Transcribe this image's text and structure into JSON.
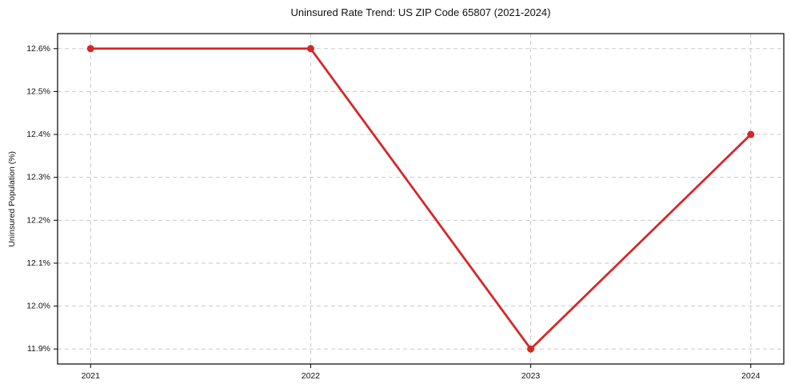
{
  "chart_data": {
    "type": "line",
    "title": "Uninsured Rate Trend: US ZIP Code 65807 (2021-2024)",
    "xlabel": "",
    "ylabel": "Uninsured Population (%)",
    "x": [
      2021,
      2022,
      2023,
      2024
    ],
    "series": [
      {
        "name": "Uninsured rate",
        "values": [
          12.6,
          12.6,
          11.9,
          12.4
        ],
        "color": "#d62728",
        "line_width": 2.8,
        "marker": "circle",
        "marker_radius": 4.5
      }
    ],
    "xtick_labels": [
      "2021",
      "2022",
      "2023",
      "2024"
    ],
    "yticks": [
      11.9,
      12.0,
      12.1,
      12.2,
      12.3,
      12.4,
      12.5,
      12.6
    ],
    "ytick_labels": [
      "11.9%",
      "12.0%",
      "12.1%",
      "12.2%",
      "12.3%",
      "12.4%",
      "12.5%",
      "12.6%"
    ],
    "xlim": [
      2020.85,
      2024.15
    ],
    "ylim": [
      11.865,
      12.635
    ],
    "grid": true,
    "grid_color": "#c9c9c9",
    "spine_color": "#000000",
    "tick_text_color": "#111111",
    "legend": false
  }
}
